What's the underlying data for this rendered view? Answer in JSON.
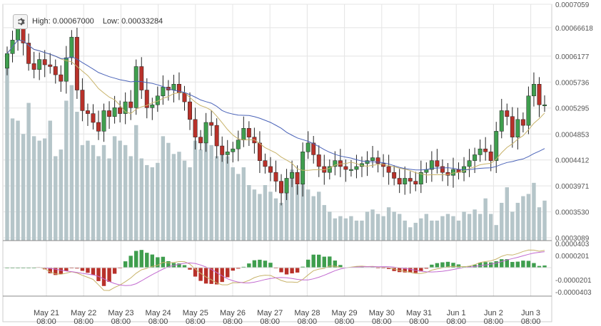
{
  "info": {
    "high_label": "High:",
    "high_value": "0.00067000",
    "low_label": "Low:",
    "low_value": "0.00033284",
    "settings_icon": "gear-icon"
  },
  "colors": {
    "bull": "#3f9e4e",
    "bear": "#b8312a",
    "volume": "#b5c5c9",
    "ma_fast": "#c8b36a",
    "ma_slow": "#4a63b8",
    "osc_fast": "#c8b36a",
    "osc_slow": "#c26ad0",
    "grid": "#e4e4e4"
  },
  "chart_data": [
    {
      "type": "candlestick",
      "y_ticks": [
        "0.0007059",
        "0.00066618",
        "0.0006177",
        "0.0005736",
        "0.0005295",
        "0.0004853",
        "0.0004412",
        "0.0003971",
        "0.0003530",
        "0.0003089"
      ],
      "ylim": [
        0.0003089,
        0.0007059
      ],
      "x_ticks": [
        {
          "day": "May 21",
          "time": "08:00"
        },
        {
          "day": "May 22",
          "time": "08:00"
        },
        {
          "day": "May 23",
          "time": "08:00"
        },
        {
          "day": "May 24",
          "time": "08:00"
        },
        {
          "day": "May 25",
          "time": "08:00"
        },
        {
          "day": "May 26",
          "time": "08:00"
        },
        {
          "day": "May 27",
          "time": "08:00"
        },
        {
          "day": "May 28",
          "time": "08:00"
        },
        {
          "day": "May 29",
          "time": "08:00"
        },
        {
          "day": "May 30",
          "time": "08:00"
        },
        {
          "day": "May 31",
          "time": "08:00"
        },
        {
          "day": "Jun 1",
          "time": "08:00"
        },
        {
          "day": "Jun 2",
          "time": "08:00"
        },
        {
          "day": "Jun 3",
          "time": "08:00"
        }
      ],
      "grid": true,
      "close": [
        0.000622,
        0.000645,
        0.000668,
        0.00064,
        0.000605,
        0.000595,
        0.000612,
        0.000603,
        0.0006,
        0.000586,
        0.000575,
        0.000615,
        0.00065,
        0.00056,
        0.000525,
        0.00052,
        0.000505,
        0.00049,
        0.000525,
        0.000515,
        0.00053,
        0.00052,
        0.00054,
        0.00053,
        0.0006,
        0.00056,
        0.00053,
        0.000535,
        0.00055,
        0.000565,
        0.00056,
        0.00057,
        0.000555,
        0.00054,
        0.00051,
        0.00048,
        0.00047,
        0.000505,
        0.0005,
        0.000465,
        0.00045,
        0.000455,
        0.00046,
        0.000475,
        0.000495,
        0.00048,
        0.00047,
        0.00044,
        0.00043,
        0.00042,
        0.000405,
        0.000385,
        0.00041,
        0.00042,
        0.0004,
        0.000455,
        0.00047,
        0.00045,
        0.00043,
        0.00042,
        0.00043,
        0.00044,
        0.00043,
        0.000425,
        0.000425,
        0.00043,
        0.000435,
        0.00044,
        0.000445,
        0.000435,
        0.00043,
        0.00042,
        0.00041,
        0.0004,
        0.00041,
        0.000405,
        0.0004,
        0.00042,
        0.000425,
        0.00044,
        0.00043,
        0.00042,
        0.000415,
        0.000425,
        0.00042,
        0.00043,
        0.00044,
        0.00045,
        0.00046,
        0.000455,
        0.00044,
        0.00049,
        0.000525,
        0.000515,
        0.00048,
        0.00051,
        0.0005,
        0.00055,
        0.00057,
        0.000535,
        0.000535
      ],
      "volume_y_estimated_fraction": 0.6,
      "volume": [
        0.82,
        0.55,
        0.54,
        0.48,
        0.62,
        0.47,
        0.45,
        0.46,
        0.54,
        0.38,
        0.41,
        0.63,
        0.7,
        0.58,
        0.43,
        0.45,
        0.43,
        0.38,
        0.43,
        0.37,
        0.47,
        0.45,
        0.43,
        0.38,
        0.52,
        0.37,
        0.34,
        0.33,
        0.35,
        0.47,
        0.44,
        0.39,
        0.4,
        0.36,
        0.33,
        0.45,
        0.41,
        0.53,
        0.43,
        0.38,
        0.4,
        0.38,
        0.33,
        0.3,
        0.33,
        0.25,
        0.23,
        0.21,
        0.25,
        0.22,
        0.19,
        0.17,
        0.27,
        0.32,
        0.25,
        0.33,
        0.23,
        0.2,
        0.22,
        0.16,
        0.13,
        0.1,
        0.11,
        0.1,
        0.11,
        0.09,
        0.09,
        0.13,
        0.14,
        0.12,
        0.11,
        0.15,
        0.13,
        0.12,
        0.09,
        0.06,
        0.08,
        0.1,
        0.12,
        0.09,
        0.09,
        0.11,
        0.12,
        0.11,
        0.09,
        0.13,
        0.12,
        0.14,
        0.12,
        0.19,
        0.12,
        0.07,
        0.17,
        0.24,
        0.13,
        0.17,
        0.2,
        0.21,
        0.26,
        0.15,
        0.18
      ],
      "note_volume_unit": "relative"
    },
    {
      "type": "macd",
      "y_ticks": [
        "0.0000403",
        "0.0000201",
        "-0.0000201",
        "-0.0000403"
      ],
      "ylim": [
        -4.03e-05,
        4.03e-05
      ]
    }
  ]
}
